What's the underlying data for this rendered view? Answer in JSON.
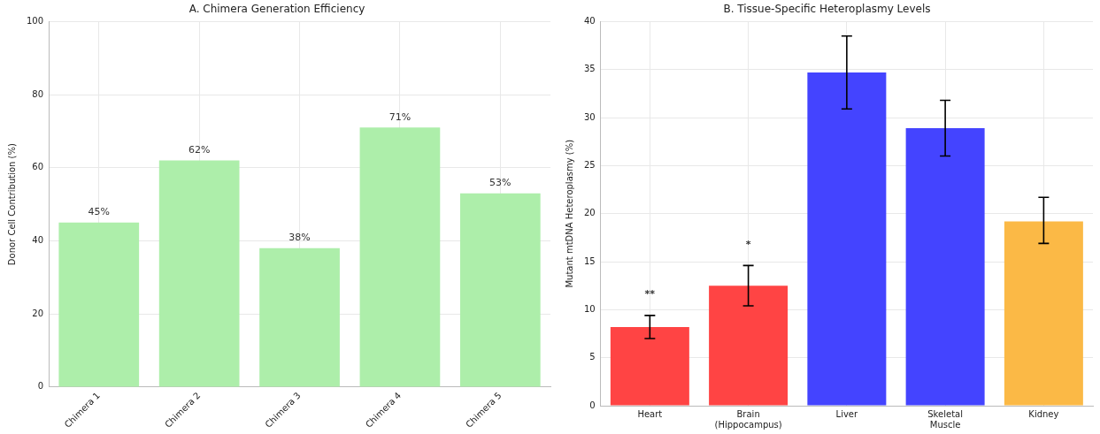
{
  "chart_data": [
    {
      "type": "bar",
      "title": "A. Chimera Generation Efficiency",
      "ylabel": "Donor Cell Contribution (%)",
      "categories": [
        "Chimera 1",
        "Chimera 2",
        "Chimera 3",
        "Chimera 4",
        "Chimera 5"
      ],
      "values": [
        45,
        62,
        38,
        71,
        53
      ],
      "color": "#adeeaa",
      "value_labels": [
        "45%",
        "62%",
        "38%",
        "71%",
        "53%"
      ],
      "ylim": [
        0,
        100
      ],
      "yticks": [
        0,
        20,
        40,
        60,
        80,
        100
      ],
      "grid": true
    },
    {
      "type": "bar",
      "title": "B. Tissue-Specific Heteroplasmy Levels",
      "ylabel": "Mutant mtDNA Heteroplasmy (%)",
      "categories": [
        "Heart",
        "Brain\n(Hippocampus)",
        "Liver",
        "Skeletal\nMuscle",
        "Kidney"
      ],
      "values": [
        8.2,
        12.5,
        34.7,
        28.9,
        19.2
      ],
      "colors": [
        "#ff4444",
        "#ff4444",
        "#4444ff",
        "#4444ff",
        "#fbb946"
      ],
      "errors": [
        [
          7.0,
          9.4
        ],
        [
          10.4,
          14.6
        ],
        [
          30.9,
          38.5
        ],
        [
          26.0,
          31.8
        ],
        [
          16.9,
          21.7
        ]
      ],
      "ylim": [
        0,
        40
      ],
      "yticks": [
        0,
        5,
        10,
        15,
        20,
        25,
        30,
        35,
        40
      ],
      "grid": true,
      "annotations": [
        "**",
        "*"
      ]
    }
  ]
}
